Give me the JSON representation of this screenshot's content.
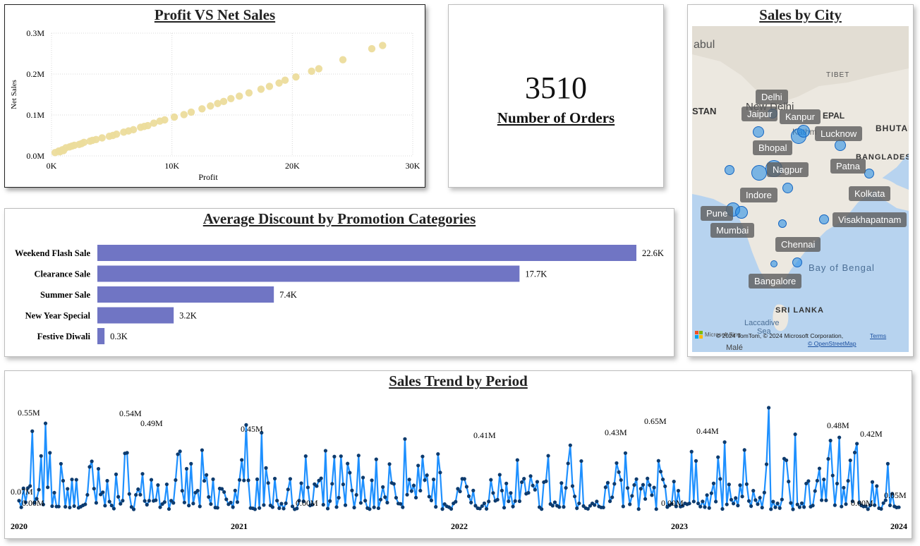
{
  "scatter": {
    "title": "Profit VS Net Sales",
    "chart_data": {
      "type": "scatter",
      "title": "Profit VS Net Sales",
      "xlabel": "Profit",
      "ylabel": "Net Sales",
      "x_ticks": [
        "0K",
        "10K",
        "20K",
        "30K"
      ],
      "y_ticks": [
        "0.0M",
        "0.1M",
        "0.2M",
        "0.3M"
      ],
      "xlim": [
        0,
        30000
      ],
      "ylim": [
        0,
        300000
      ],
      "grid": true,
      "points": [
        [
          300,
          8000
        ],
        [
          600,
          12000
        ],
        [
          900,
          15000
        ],
        [
          1200,
          20000
        ],
        [
          1500,
          22000
        ],
        [
          1900,
          26000
        ],
        [
          2300,
          28000
        ],
        [
          2700,
          33000
        ],
        [
          3200,
          36000
        ],
        [
          3700,
          40000
        ],
        [
          4200,
          44000
        ],
        [
          4800,
          48000
        ],
        [
          5400,
          53000
        ],
        [
          6000,
          58000
        ],
        [
          6800,
          64000
        ],
        [
          7400,
          70000
        ],
        [
          8000,
          74000
        ],
        [
          8500,
          80000
        ],
        [
          9400,
          88000
        ],
        [
          10200,
          95000
        ],
        [
          11000,
          101000
        ],
        [
          11600,
          107000
        ],
        [
          12500,
          115000
        ],
        [
          13200,
          122000
        ],
        [
          13800,
          128000
        ],
        [
          14300,
          133000
        ],
        [
          14900,
          140000
        ],
        [
          15600,
          146000
        ],
        [
          16400,
          154000
        ],
        [
          17400,
          163000
        ],
        [
          18100,
          170000
        ],
        [
          18900,
          178000
        ],
        [
          19400,
          185000
        ],
        [
          20300,
          193000
        ],
        [
          21600,
          207000
        ],
        [
          22200,
          213000
        ],
        [
          24200,
          235000
        ],
        [
          26600,
          262000
        ],
        [
          27500,
          270000
        ],
        [
          700,
          10000
        ],
        [
          1000,
          13000
        ],
        [
          1700,
          24000
        ],
        [
          2500,
          30000
        ],
        [
          3400,
          38000
        ],
        [
          5100,
          50000
        ],
        [
          6400,
          61000
        ],
        [
          7700,
          72000
        ],
        [
          9000,
          85000
        ]
      ]
    }
  },
  "kpi": {
    "value": "3510",
    "label": "Number of Orders"
  },
  "map": {
    "title": "Sales by City",
    "cities": [
      "Delhi",
      "Jaipur",
      "Kanpur",
      "Lucknow",
      "Bhopal",
      "Nagpur",
      "Patna",
      "Indore",
      "Kolkata",
      "Pune",
      "Mumbai",
      "Visakhapatnam",
      "Chennai",
      "Bangalore"
    ],
    "background_labels": [
      "abul",
      "TIBET",
      "New Delhi",
      "STAN",
      "EPAL",
      "BHUTAN",
      "BANGLADES",
      "Bay of Bengal",
      "SRI LANKA",
      "Laccadive",
      "Sea",
      "Malé",
      "Kathm"
    ],
    "attribution": "© 2024 TomTom, © 2024 Microsoft Corporation,",
    "terms": "Terms",
    "osm": "© OpenStreetMap",
    "bing": "Microsoft Bing"
  },
  "bars": {
    "title": "Average Discount by Promotion Categories",
    "chart_data": {
      "type": "bar",
      "orientation": "horizontal",
      "title": "Average Discount by Promotion Categories",
      "categories": [
        "Weekend Flash Sale",
        "Clearance Sale",
        "Summer Sale",
        "New Year Special",
        "Festive Diwali"
      ],
      "values": [
        22600,
        17700,
        7400,
        3200,
        300
      ],
      "data_labels": [
        "22.6K",
        "17.7K",
        "7.4K",
        "3.2K",
        "0.3K"
      ],
      "color": "#7075c4"
    }
  },
  "trend": {
    "title": "Sales Trend by Period",
    "chart_data": {
      "type": "line",
      "title": "Sales Trend by Period",
      "x_ticks": [
        "2020",
        "2021",
        "2022",
        "2023",
        "2024"
      ],
      "line_color": "#1e90ff",
      "marker_color": "#0d3b6e",
      "annotations": [
        {
          "label": "0.07M"
        },
        {
          "label": "0.00M"
        },
        {
          "label": "0.55M"
        },
        {
          "label": "0.54M"
        },
        {
          "label": "0.49M"
        },
        {
          "label": "0.45M"
        },
        {
          "label": "0.00M"
        },
        {
          "label": "0.41M"
        },
        {
          "label": "0.43M"
        },
        {
          "label": "0.65M"
        },
        {
          "label": "0.00M"
        },
        {
          "label": "0.44M"
        },
        {
          "label": "0.48M"
        },
        {
          "label": "0.42M"
        },
        {
          "label": "0.00M"
        },
        {
          "label": "0.05M"
        }
      ]
    }
  }
}
